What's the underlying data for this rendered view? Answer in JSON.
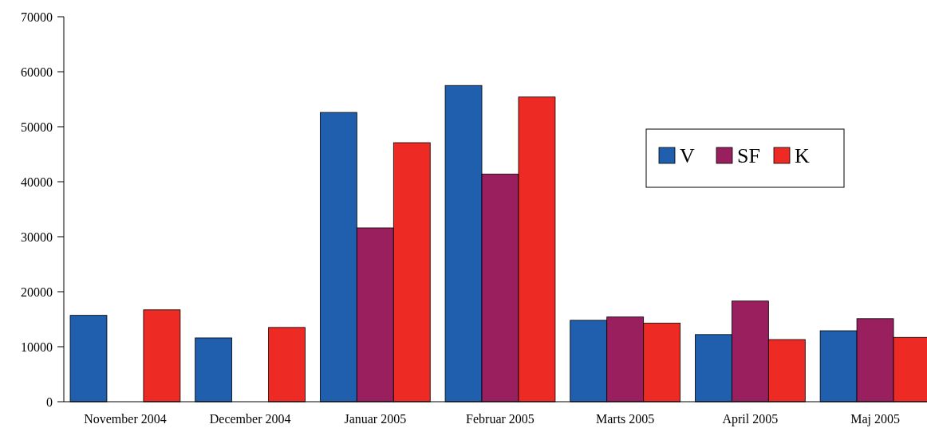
{
  "chart_data": {
    "type": "bar",
    "categories": [
      "November 2004",
      "December 2004",
      "Januar 2005",
      "Februar 2005",
      "Marts 2005",
      "April 2005",
      "Maj 2005"
    ],
    "series": [
      {
        "name": "V",
        "color": "#1f5fae",
        "values": [
          15700,
          11600,
          52600,
          57500,
          14800,
          12200,
          12900
        ]
      },
      {
        "name": "SF",
        "color": "#991f5f",
        "values": [
          null,
          null,
          31600,
          41400,
          15400,
          18300,
          15100
        ]
      },
      {
        "name": "K",
        "color": "#ee2a24",
        "values": [
          16700,
          13500,
          47100,
          55400,
          14300,
          11300,
          11700
        ]
      }
    ],
    "ylim": [
      0,
      70000
    ],
    "yticks": [
      0,
      10000,
      20000,
      30000,
      40000,
      50000,
      60000,
      70000
    ],
    "grid": false,
    "legend": "top right"
  }
}
